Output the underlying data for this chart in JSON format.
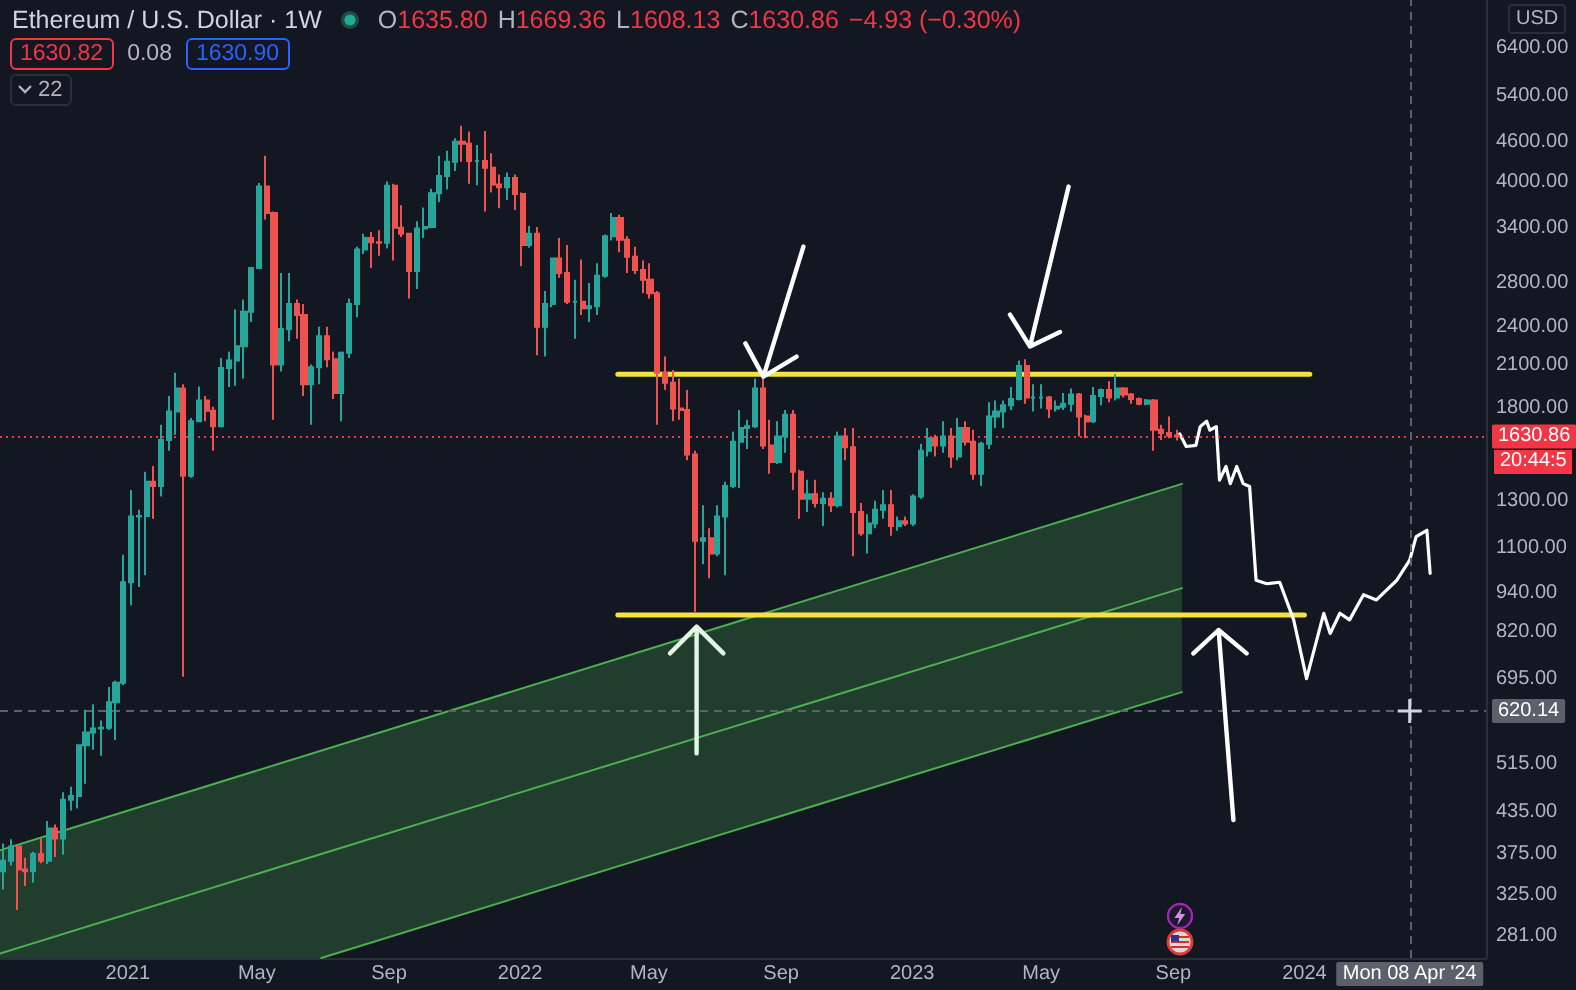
{
  "chart_data": {
    "type": "candlestick",
    "title": "Ethereum / U.S. Dollar · 1W",
    "ylabel": "USD",
    "annotations": [
      "O1635.80",
      "H1669.36",
      "L1608.13",
      "C1630.86",
      "−4.93 (−0.30%)",
      "1630.82",
      "0.08",
      "1630.90",
      "22",
      "20:44:5"
    ],
    "x": [
      "2020-09-07",
      "2020-09-14",
      "2020-09-21",
      "2020-09-28",
      "2020-10-05",
      "2020-10-12",
      "2020-10-19",
      "2020-10-26",
      "2020-11-02",
      "2020-11-09",
      "2020-11-16",
      "2020-11-23",
      "2020-11-30",
      "2020-12-07",
      "2020-12-14",
      "2020-12-21",
      "2020-12-28",
      "2021-01-04",
      "2021-01-11",
      "2021-01-18",
      "2021-01-25",
      "2021-02-01",
      "2021-02-08",
      "2021-02-15",
      "2021-02-22",
      "2021-03-01",
      "2021-03-08",
      "2021-03-15",
      "2021-03-22",
      "2021-03-29",
      "2021-04-05",
      "2021-04-12",
      "2021-04-19",
      "2021-04-26",
      "2021-05-03",
      "2021-05-10",
      "2021-05-17",
      "2021-05-24",
      "2021-05-31",
      "2021-06-07",
      "2021-06-14",
      "2021-06-21",
      "2021-06-28",
      "2021-07-05",
      "2021-07-12",
      "2021-07-19",
      "2021-07-26",
      "2021-08-02",
      "2021-08-09",
      "2021-08-16",
      "2021-08-23",
      "2021-08-30",
      "2021-09-06",
      "2021-09-13",
      "2021-09-20",
      "2021-09-27",
      "2021-10-04",
      "2021-10-11",
      "2021-10-18",
      "2021-10-25",
      "2021-11-01",
      "2021-11-08",
      "2021-11-15",
      "2021-11-22",
      "2021-11-29",
      "2021-12-06",
      "2021-12-13",
      "2021-12-20",
      "2021-12-27",
      "2022-01-03",
      "2022-01-10",
      "2022-01-17",
      "2022-01-24",
      "2022-01-31",
      "2022-02-07",
      "2022-02-14",
      "2022-02-21",
      "2022-02-28",
      "2022-03-07",
      "2022-03-14",
      "2022-03-21",
      "2022-03-28",
      "2022-04-04",
      "2022-04-11",
      "2022-04-18",
      "2022-04-25",
      "2022-05-02",
      "2022-05-09",
      "2022-05-16",
      "2022-05-23",
      "2022-05-30",
      "2022-06-06",
      "2022-06-13",
      "2022-06-20",
      "2022-06-27",
      "2022-07-04",
      "2022-07-11",
      "2022-07-18",
      "2022-07-25",
      "2022-08-01",
      "2022-08-08",
      "2022-08-15",
      "2022-08-22",
      "2022-08-29",
      "2022-09-05",
      "2022-09-12",
      "2022-09-19",
      "2022-09-26",
      "2022-10-03",
      "2022-10-10",
      "2022-10-17",
      "2022-10-24",
      "2022-10-31",
      "2022-11-07",
      "2022-11-14",
      "2022-11-21",
      "2022-11-28",
      "2022-12-05",
      "2022-12-12",
      "2022-12-19",
      "2022-12-26",
      "2023-01-02",
      "2023-01-09",
      "2023-01-16",
      "2023-01-23",
      "2023-01-30",
      "2023-02-06",
      "2023-02-13",
      "2023-02-20",
      "2023-02-27",
      "2023-03-06",
      "2023-03-13",
      "2023-03-20",
      "2023-03-27",
      "2023-04-03",
      "2023-04-10",
      "2023-04-17",
      "2023-04-24",
      "2023-05-01",
      "2023-05-08",
      "2023-05-15",
      "2023-05-22",
      "2023-05-29",
      "2023-06-05",
      "2023-06-12",
      "2023-06-19",
      "2023-06-26",
      "2023-07-03",
      "2023-07-10",
      "2023-07-17",
      "2023-07-24",
      "2023-07-31",
      "2023-08-07",
      "2023-08-14",
      "2023-08-21",
      "2023-08-28",
      "2023-09-04"
    ],
    "ohlc": [
      [
        353,
        389,
        331,
        366
      ],
      [
        366,
        395,
        360,
        385
      ],
      [
        385,
        386,
        308,
        355
      ],
      [
        355,
        370,
        335,
        353
      ],
      [
        353,
        378,
        339,
        375
      ],
      [
        375,
        396,
        363,
        366
      ],
      [
        366,
        421,
        362,
        410
      ],
      [
        410,
        416,
        371,
        396
      ],
      [
        396,
        466,
        374,
        454
      ],
      [
        454,
        475,
        437,
        460
      ],
      [
        460,
        551,
        440,
        550
      ],
      [
        550,
        623,
        480,
        575
      ],
      [
        575,
        635,
        541,
        583
      ],
      [
        583,
        600,
        530,
        585
      ],
      [
        585,
        675,
        580,
        640
      ],
      [
        640,
        690,
        560,
        685
      ],
      [
        685,
        1075,
        680,
        976
      ],
      [
        976,
        1350,
        900,
        1230
      ],
      [
        1230,
        1260,
        960,
        1232
      ],
      [
        1232,
        1440,
        1000,
        1390
      ],
      [
        1390,
        1470,
        1220,
        1370
      ],
      [
        1370,
        1700,
        1320,
        1610
      ],
      [
        1610,
        1880,
        1550,
        1780
      ],
      [
        1780,
        2040,
        1640,
        1930
      ],
      [
        1930,
        1960,
        700,
        1420
      ],
      [
        1420,
        1740,
        1410,
        1720
      ],
      [
        1720,
        1945,
        1720,
        1850
      ],
      [
        1850,
        1880,
        1720,
        1785
      ],
      [
        1785,
        1810,
        1550,
        1690
      ],
      [
        1690,
        2150,
        1690,
        2075
      ],
      [
        2075,
        2200,
        1940,
        2130
      ],
      [
        2130,
        2550,
        1950,
        2240
      ],
      [
        2240,
        2640,
        2000,
        2530
      ],
      [
        2530,
        2960,
        2440,
        2950
      ],
      [
        2950,
        3980,
        2940,
        3930
      ],
      [
        3930,
        4380,
        3500,
        3580
      ],
      [
        3580,
        3600,
        1730,
        2100
      ],
      [
        2100,
        2900,
        2050,
        2380
      ],
      [
        2380,
        2900,
        2280,
        2600
      ],
      [
        2600,
        2640,
        2300,
        2500
      ],
      [
        2500,
        2600,
        1880,
        1960
      ],
      [
        1960,
        2100,
        1700,
        2080
      ],
      [
        2080,
        2400,
        1960,
        2320
      ],
      [
        2320,
        2400,
        2080,
        2140
      ],
      [
        2140,
        2200,
        1860,
        1900
      ],
      [
        1900,
        2200,
        1720,
        2190
      ],
      [
        2190,
        2650,
        2150,
        2600
      ],
      [
        2600,
        3180,
        2480,
        3150
      ],
      [
        3150,
        3330,
        3100,
        3280
      ],
      [
        3280,
        3350,
        2950,
        3230
      ],
      [
        3230,
        3370,
        3080,
        3225
      ],
      [
        3225,
        4000,
        3160,
        3940
      ],
      [
        3940,
        3970,
        3030,
        3400
      ],
      [
        3400,
        3680,
        3290,
        3330
      ],
      [
        3330,
        3340,
        2650,
        2920
      ],
      [
        2920,
        3480,
        2740,
        3390
      ],
      [
        3390,
        3650,
        3280,
        3410
      ],
      [
        3410,
        3900,
        3400,
        3840
      ],
      [
        3840,
        4380,
        3720,
        4080
      ],
      [
        4080,
        4460,
        3890,
        4290
      ],
      [
        4290,
        4660,
        4150,
        4600
      ],
      [
        4600,
        4870,
        4290,
        4570
      ],
      [
        4570,
        4770,
        3970,
        4300
      ],
      [
        4300,
        4550,
        3950,
        4300
      ],
      [
        4300,
        4780,
        3600,
        4200
      ],
      [
        4200,
        4420,
        3850,
        3960
      ],
      [
        3960,
        4100,
        3640,
        3920
      ],
      [
        3920,
        4130,
        3750,
        4050
      ],
      [
        4050,
        4100,
        3620,
        3830
      ],
      [
        3830,
        3850,
        2970,
        3200
      ],
      [
        3200,
        3420,
        3170,
        3330
      ],
      [
        3330,
        3410,
        2170,
        2400
      ],
      [
        2400,
        2720,
        2160,
        2600
      ],
      [
        2600,
        3060,
        2570,
        3050
      ],
      [
        3050,
        3280,
        2850,
        2900
      ],
      [
        2900,
        3200,
        2600,
        2620
      ],
      [
        2620,
        2830,
        2300,
        2620
      ],
      [
        2620,
        3040,
        2500,
        2560
      ],
      [
        2560,
        2800,
        2440,
        2580
      ],
      [
        2580,
        3000,
        2500,
        2870
      ],
      [
        2870,
        3320,
        2850,
        3300
      ],
      [
        3300,
        3580,
        3250,
        3520
      ],
      [
        3520,
        3560,
        3120,
        3260
      ],
      [
        3260,
        3300,
        2900,
        3070
      ],
      [
        3070,
        3180,
        2890,
        2930
      ],
      [
        2930,
        3030,
        2700,
        2830
      ],
      [
        2830,
        3000,
        2650,
        2700
      ],
      [
        2700,
        2720,
        1700,
        2040
      ],
      [
        2040,
        2160,
        1920,
        1970
      ],
      [
        1970,
        2060,
        1720,
        1800
      ],
      [
        1800,
        2000,
        1730,
        1790
      ],
      [
        1790,
        1920,
        1500,
        1530
      ],
      [
        1530,
        1550,
        880,
        1130
      ],
      [
        1130,
        1280,
        1040,
        1140
      ],
      [
        1140,
        1180,
        990,
        1080
      ],
      [
        1080,
        1280,
        1070,
        1230
      ],
      [
        1230,
        1390,
        1000,
        1370
      ],
      [
        1370,
        1660,
        1360,
        1600
      ],
      [
        1600,
        1790,
        1360,
        1680
      ],
      [
        1680,
        1730,
        1560,
        1690
      ],
      [
        1690,
        2000,
        1680,
        1930
      ],
      [
        1930,
        2030,
        1560,
        1580
      ],
      [
        1580,
        1730,
        1430,
        1490
      ],
      [
        1490,
        1720,
        1480,
        1630
      ],
      [
        1630,
        1790,
        1540,
        1760
      ],
      [
        1760,
        1790,
        1350,
        1440
      ],
      [
        1440,
        1450,
        1220,
        1310
      ],
      [
        1310,
        1400,
        1250,
        1330
      ],
      [
        1330,
        1400,
        1270,
        1290
      ],
      [
        1290,
        1340,
        1190,
        1310
      ],
      [
        1310,
        1340,
        1250,
        1280
      ],
      [
        1280,
        1660,
        1270,
        1630
      ],
      [
        1630,
        1680,
        1500,
        1570
      ],
      [
        1570,
        1680,
        1070,
        1250
      ],
      [
        1250,
        1290,
        1150,
        1160
      ],
      [
        1160,
        1240,
        1080,
        1200
      ],
      [
        1200,
        1300,
        1180,
        1260
      ],
      [
        1260,
        1350,
        1220,
        1280
      ],
      [
        1280,
        1350,
        1150,
        1190
      ],
      [
        1190,
        1230,
        1170,
        1210
      ],
      [
        1210,
        1230,
        1190,
        1200
      ],
      [
        1200,
        1330,
        1190,
        1320
      ],
      [
        1320,
        1590,
        1310,
        1550
      ],
      [
        1550,
        1680,
        1520,
        1620
      ],
      [
        1620,
        1640,
        1520,
        1580
      ],
      [
        1580,
        1720,
        1540,
        1630
      ],
      [
        1630,
        1680,
        1460,
        1520
      ],
      [
        1520,
        1740,
        1500,
        1680
      ],
      [
        1680,
        1720,
        1580,
        1600
      ],
      [
        1600,
        1670,
        1400,
        1430
      ],
      [
        1430,
        1600,
        1370,
        1590
      ],
      [
        1590,
        1840,
        1560,
        1750
      ],
      [
        1750,
        1850,
        1680,
        1780
      ],
      [
        1780,
        1850,
        1680,
        1820
      ],
      [
        1820,
        1940,
        1790,
        1860
      ],
      [
        1860,
        2130,
        1850,
        2090
      ],
      [
        2090,
        2140,
        1830,
        1870
      ],
      [
        1870,
        1960,
        1780,
        1870
      ],
      [
        1870,
        1960,
        1800,
        1870
      ],
      [
        1870,
        1880,
        1740,
        1800
      ],
      [
        1800,
        1850,
        1780,
        1810
      ],
      [
        1810,
        1900,
        1790,
        1830
      ],
      [
        1830,
        1930,
        1780,
        1890
      ],
      [
        1890,
        1900,
        1630,
        1750
      ],
      [
        1750,
        1760,
        1620,
        1720
      ],
      [
        1720,
        1940,
        1710,
        1880
      ],
      [
        1880,
        1930,
        1820,
        1920
      ],
      [
        1920,
        1980,
        1840,
        1870
      ],
      [
        1870,
        2030,
        1850,
        1930
      ],
      [
        1930,
        1940,
        1870,
        1890
      ],
      [
        1890,
        1900,
        1830,
        1860
      ],
      [
        1860,
        1870,
        1820,
        1830
      ],
      [
        1830,
        1860,
        1820,
        1850
      ],
      [
        1850,
        1860,
        1550,
        1670
      ],
      [
        1670,
        1700,
        1610,
        1650
      ],
      [
        1650,
        1750,
        1620,
        1636
      ],
      [
        1635.8,
        1669.36,
        1608.13,
        1630.86
      ]
    ],
    "series": [
      {
        "type": "line",
        "x": [
          "2020-09-04",
          "2021-06-30",
          "2023-09-09"
        ],
        "values": [
          264,
          375,
          956
        ],
        "lower": [
          260,
          260,
          663
        ],
        "upper": [
          380,
          540,
          1380
        ],
        "color": "#4caf50"
      },
      {
        "type": "line",
        "x": [
          "2020-09-04",
          "2023-09-09"
        ],
        "values": [
          380,
          1380
        ],
        "color": "#4caf50"
      },
      {
        "type": "line",
        "x": [
          "2021-06-30",
          "2023-09-09"
        ],
        "values": [
          260,
          663
        ],
        "color": "#4caf50"
      },
      {
        "type": "line",
        "x": [
          "2022-04-02",
          "2024-01-06"
        ],
        "values": [
          2030,
          2030
        ],
        "color": "#f2e342"
      },
      {
        "type": "line",
        "x": [
          "2022-04-02",
          "2024-01-01"
        ],
        "values": [
          870,
          870
        ],
        "color": "#f2e342"
      },
      {
        "type": "line",
        "x": [
          "2023-09-07",
          "2023-09-13",
          "2023-09-22",
          "2023-09-26",
          "2023-10-02",
          "2023-10-05",
          "2023-10-11",
          "2023-10-14",
          "2023-10-20",
          "2023-10-24",
          "2023-10-30",
          "2023-11-05",
          "2023-11-11",
          "2023-11-17",
          "2023-11-27",
          "2023-12-09",
          "2023-12-22",
          "2024-01-03",
          "2024-01-19",
          "2024-01-25",
          "2024-02-03",
          "2024-02-12",
          "2024-02-25",
          "2024-03-08",
          "2024-03-27",
          "2024-04-08",
          "2024-04-14",
          "2024-04-24",
          "2024-04-27"
        ],
        "values": [
          1645,
          1574,
          1580,
          1688,
          1720,
          1667,
          1688,
          1398,
          1467,
          1381,
          1467,
          1381,
          1367,
          983,
          971,
          976,
          855,
          695,
          875,
          815,
          875,
          855,
          934,
          917,
          983,
          1055,
          1146,
          1172,
          1007
        ],
        "color": "#ffffff"
      }
    ],
    "ref_lines": [
      {
        "axis": "y",
        "value": 1630.86,
        "label": "1630.86",
        "color": "#f23645",
        "line_style": "dotted"
      },
      {
        "axis": "y",
        "value": 620.14,
        "label": "620.14",
        "color": "#5d606b",
        "line_style": "dashed"
      },
      {
        "axis": "x",
        "value": "2024-04-08",
        "label": "Mon 08 Apr '24",
        "color": "#5d606b",
        "line_style": "dashed"
      }
    ],
    "log": "y",
    "marker": "none",
    "xlim": [
      "2020-09-04",
      "2024-06-18"
    ],
    "xticks": [
      {
        "value": "2021-01-01",
        "label": "2021"
      },
      {
        "value": "2021-05-01",
        "label": "May"
      },
      {
        "value": "2021-09-01",
        "label": "Sep"
      },
      {
        "value": "2022-01-01",
        "label": "2022"
      },
      {
        "value": "2022-05-01",
        "label": "May"
      },
      {
        "value": "2022-09-01",
        "label": "Sep"
      },
      {
        "value": "2023-01-01",
        "label": "2023"
      },
      {
        "value": "2023-05-01",
        "label": "May"
      },
      {
        "value": "2023-09-01",
        "label": "Sep"
      },
      {
        "value": "2024-01-01",
        "label": "2024"
      }
    ],
    "ylim": [
      260,
      7580
    ],
    "yticks": [
      {
        "value": 281,
        "label": "281.00"
      },
      {
        "value": 325,
        "label": "325.00"
      },
      {
        "value": 375,
        "label": "375.00"
      },
      {
        "value": 435,
        "label": "435.00"
      },
      {
        "value": 515,
        "label": "515.00"
      },
      {
        "value": 695,
        "label": "695.00"
      },
      {
        "value": 820,
        "label": "820.00"
      },
      {
        "value": 940,
        "label": "940.00"
      },
      {
        "value": 1100,
        "label": "1100.00"
      },
      {
        "value": 1300,
        "label": "1300.00"
      },
      {
        "value": 1800,
        "label": "1800.00"
      },
      {
        "value": 2100,
        "label": "2100.00"
      },
      {
        "value": 2400,
        "label": "2400.00"
      },
      {
        "value": 2800,
        "label": "2800.00"
      },
      {
        "value": 3400,
        "label": "3400.00"
      },
      {
        "value": 4000,
        "label": "4000.00"
      },
      {
        "value": 4600,
        "label": "4600.00"
      },
      {
        "value": 5400,
        "label": "5400.00"
      },
      {
        "value": 6400,
        "label": "6400.00"
      }
    ]
  }
}
